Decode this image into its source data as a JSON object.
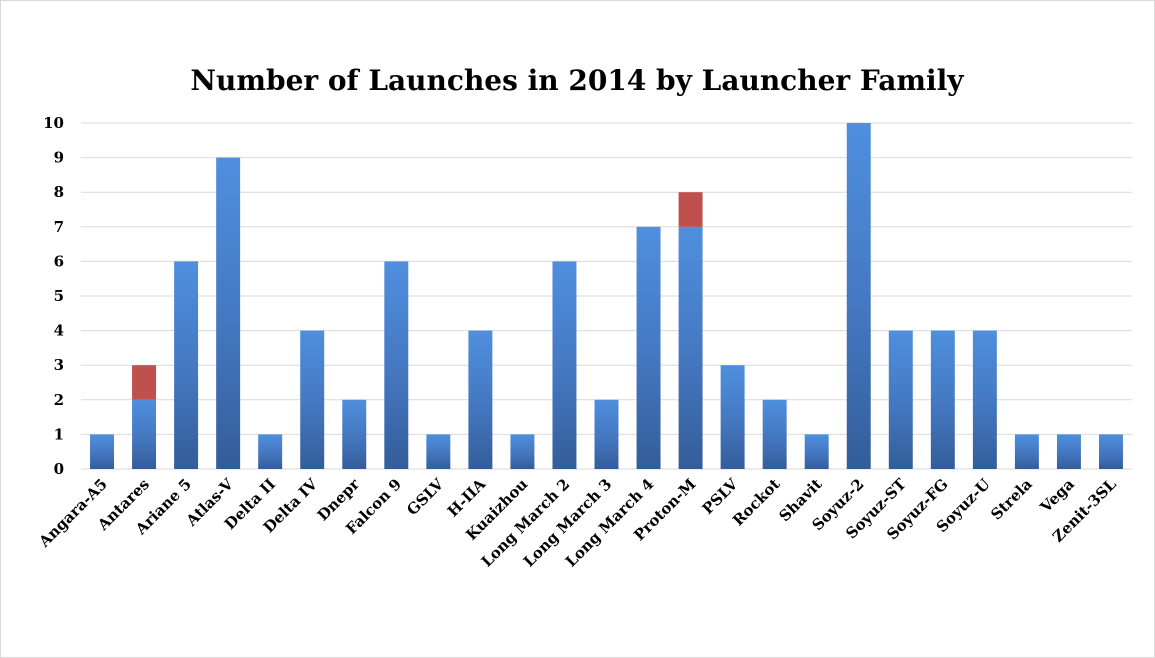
{
  "chart_data": {
    "type": "bar",
    "stacked": true,
    "title": "Number of Launches in 2014 by Launcher Family",
    "xlabel": "",
    "ylabel": "",
    "ylim": [
      0,
      10
    ],
    "yticks": [
      0,
      1,
      2,
      3,
      4,
      5,
      6,
      7,
      8,
      9,
      10
    ],
    "grid": true,
    "categories": [
      "Angara-A5",
      "Antares",
      "Ariane 5",
      "Atlas-V",
      "Delta II",
      "Delta IV",
      "Dnepr",
      "Falcon 9",
      "GSLV",
      "H-IIA",
      "Kuaizhou",
      "Long March 2",
      "Long March 3",
      "Long March 4",
      "Proton-M",
      "PSLV",
      "Rockot",
      "Shavit",
      "Soyuz-2",
      "Soyuz-ST",
      "Soyuz-FG",
      "Soyuz-U",
      "Strela",
      "Vega",
      "Zenit-3SL"
    ],
    "series": [
      {
        "color": "#4a86d4",
        "values": [
          1,
          2,
          6,
          9,
          1,
          4,
          2,
          6,
          1,
          4,
          1,
          6,
          2,
          7,
          7,
          3,
          2,
          1,
          10,
          4,
          4,
          4,
          1,
          1,
          1
        ]
      },
      {
        "color": "#c0504d",
        "values": [
          0,
          1,
          0,
          0,
          0,
          0,
          0,
          0,
          0,
          0,
          0,
          0,
          0,
          0,
          1,
          0,
          0,
          0,
          0,
          0,
          0,
          0,
          0,
          0,
          0
        ]
      }
    ]
  }
}
